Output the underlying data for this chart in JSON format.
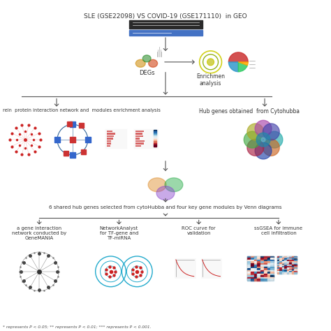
{
  "title": "SLE (GSE22098) VS COVID-19 (GSE171110)  in GEO",
  "bg_color": "#ffffff",
  "text_color": "#333333",
  "arrow_color": "#555555",
  "line_color": "#555555",
  "footnote": "* represents P < 0.05; ** represents P < 0.01; *** represents P < 0.001.",
  "box1_label": "DEGs",
  "box2_label": "Enrichmen\nanalysis",
  "box3_label": "rein  protein interaction network and  modules enrichment analysis",
  "box4_label": "Hub genes obtained  from Cytohubba",
  "box5_label": "6 shared hub genes selected from cytoHubba and four key gene modules by Venn diagrams",
  "box6a_label": "a gene interaction\nnetwork conducted by\nGeneMANIA",
  "box6b_label": "NetworkAnalyst\nfor TF-gene and\nTF-miRNA",
  "box6c_label": "ROC curve for\nvalidation",
  "box6d_label": "ssGSEA for immune\ncell infiltration"
}
